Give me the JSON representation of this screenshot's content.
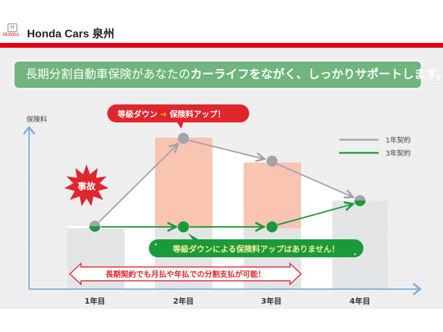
{
  "header": {
    "logo_text": "HONDA",
    "brand": "Honda Cars 泉州"
  },
  "banner": {
    "text_plain": "長期分割自動車保険があなたの",
    "text_bold": "カーライフをながく、しっかりサポートします。"
  },
  "diagram": {
    "y_axis_label": "保険料",
    "x_labels": [
      "1年目",
      "2年目",
      "3年目",
      "4年目"
    ],
    "legend": [
      {
        "label": "1年契約",
        "color": "#a3a3ab"
      },
      {
        "label": "3年契約",
        "color": "#1a9a3a"
      }
    ],
    "accident_label": "事故",
    "red_callout": {
      "left": "等級ダウン",
      "arrow": "➜",
      "right": "保険料アップ！"
    },
    "green_callout": "等級ダウンによる保険料アップはありません！",
    "payment_note": "長期契約でも月払や年払での分割支払が可能！",
    "colors": {
      "increase_bar": "#f9c4b2",
      "red": "#e0262d",
      "green": "#1a9a3a",
      "gray": "#a3a3ab",
      "axis": "#7fb2dc"
    }
  }
}
